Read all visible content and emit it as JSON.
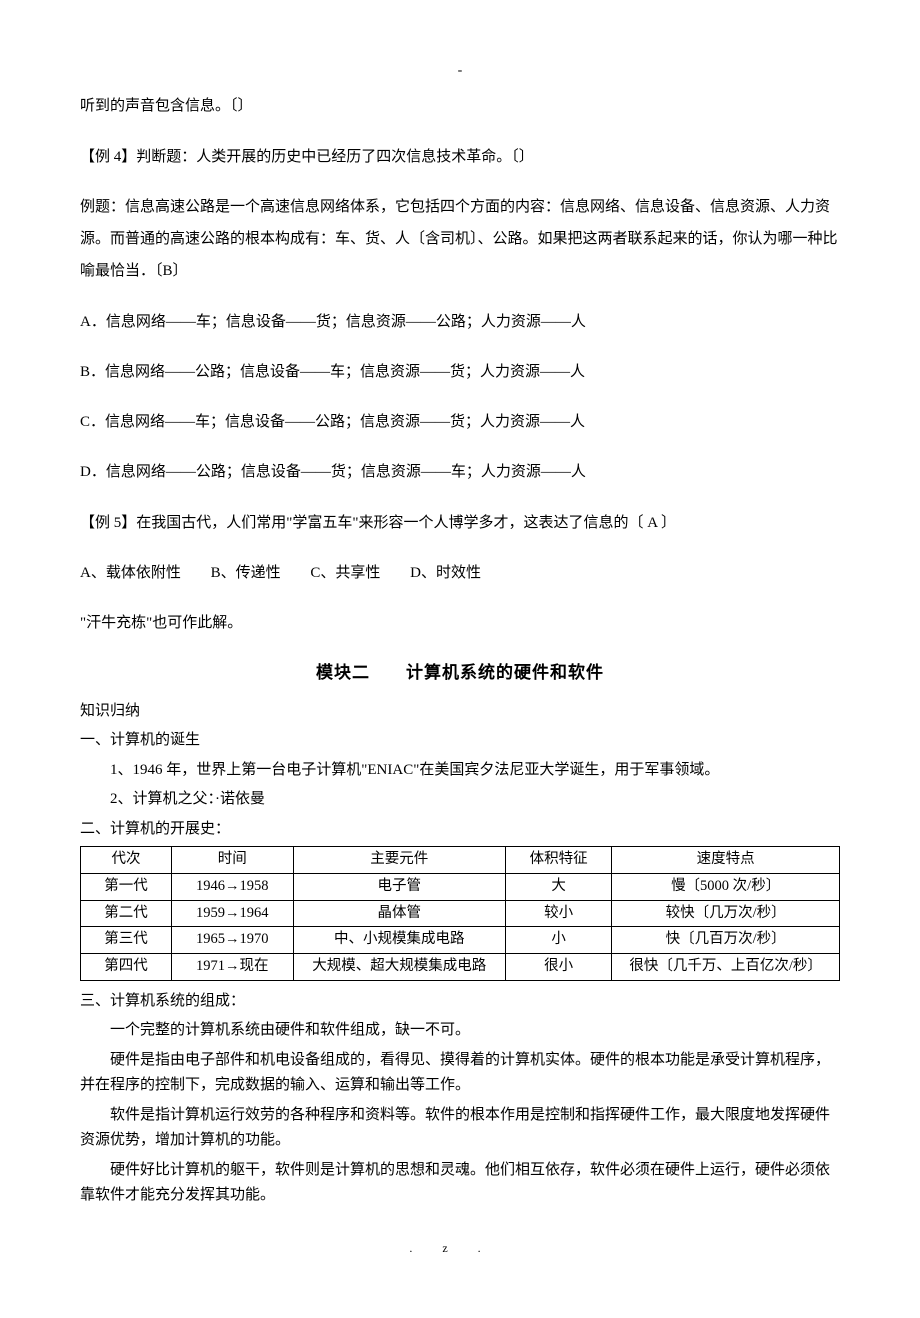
{
  "header_mark": "-",
  "line1": "听到的声音包含信息。〔〕",
  "ex4": "【例 4】判断题：人类开展的历史中已经历了四次信息技术革命。〔〕",
  "ex_q": "例题：信息高速公路是一个高速信息网络体系，它包括四个方面的内容：信息网络、信息设备、信息资源、人力资源。而普通的高速公路的根本构成有：车、货、人〔含司机〕、公路。如果把这两者联系起来的话，你认为哪一种比喻最恰当．〔B〕",
  "optA": "A．信息网络——车；信息设备——货；信息资源——公路；人力资源——人",
  "optB": "B．信息网络——公路；信息设备——车；信息资源——货；人力资源——人",
  "optC": "C．信息网络——车；信息设备——公路；信息资源——货；人力资源——人",
  "optD": "D．信息网络——公路；信息设备——货；信息资源——车；人力资源——人",
  "ex5": "【例 5】在我国古代，人们常用\"学富五车\"来形容一个人博学多才，这表达了信息的〔  A  〕",
  "ex5_A": "A、载体依附性",
  "ex5_B": "B、传递性",
  "ex5_C": "C、共享性",
  "ex5_D": "D、时效性",
  "note1": "\"汗牛充栋\"也可作此解。",
  "module_title": "模块二　　计算机系统的硬件和软件",
  "sec_knowledge": "知识归纳",
  "sec1": "一、计算机的诞生",
  "sec1_1": "1、1946 年，世界上第一台电子计算机\"ENIAC\"在美国宾夕法尼亚大学诞生，用于军事领域。",
  "sec1_2": "2、计算机之父：·诺依曼",
  "sec2": "二、计算机的开展史：",
  "table": {
    "headers": [
      "代次",
      "时间",
      "主要元件",
      "体积特征",
      "速度特点"
    ],
    "rows": [
      [
        "第一代",
        "1946→1958",
        "电子管",
        "大",
        "慢〔5000 次/秒〕"
      ],
      [
        "第二代",
        "1959→1964",
        "晶体管",
        "较小",
        "较快〔几万次/秒〕"
      ],
      [
        "第三代",
        "1965→1970",
        "中、小规模集成电路",
        "小",
        "快〔几百万次/秒〕"
      ],
      [
        "第四代",
        "1971→现在",
        "大规模、超大规模集成电路",
        "很小",
        "很快〔几千万、上百亿次/秒〕"
      ]
    ],
    "col_widths": [
      "12%",
      "16%",
      "28%",
      "14%",
      "30%"
    ]
  },
  "sec3": "三、计算机系统的组成：",
  "sec3_1": "一个完整的计算机系统由硬件和软件组成，缺一不可。",
  "sec3_2": "硬件是指由电子部件和机电设备组成的，看得见、摸得着的计算机实体。硬件的根本功能是承受计算机程序，并在程序的控制下，完成数据的输入、运算和输出等工作。",
  "sec3_3": "软件是指计算机运行效劳的各种程序和资料等。软件的根本作用是控制和指挥硬件工作，最大限度地发挥硬件资源优势，增加计算机的功能。",
  "sec3_4": "硬件好比计算机的躯干，软件则是计算机的思想和灵魂。他们相互依存，软件必须在硬件上运行，硬件必须依靠软件才能充分发挥其功能。",
  "footer_mark": ".z."
}
